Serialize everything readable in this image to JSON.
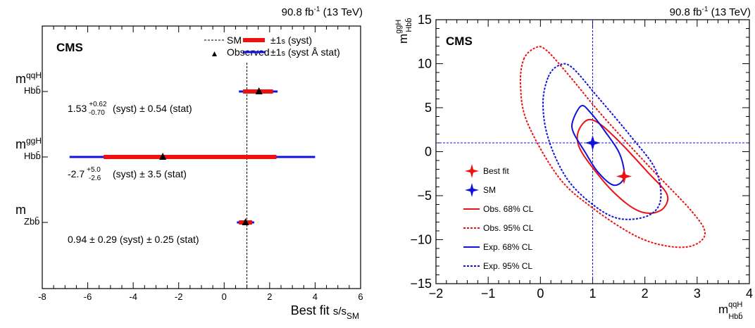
{
  "chart_data": [
    {
      "type": "scatter",
      "lumi_label": "90.8 fb",
      "lumi_sup": "-1",
      "energy_label": " (13 TeV)",
      "experiment": "CMS",
      "xlabel": "Best fit",
      "xlabel_symbol": "s/s",
      "xlabel_sub": "SM",
      "xlim": [
        -8,
        6
      ],
      "x_ticks": [
        "-8",
        "-6",
        "-4",
        "-2",
        "0",
        "2",
        "4",
        "6"
      ],
      "sm_line_x": 1,
      "legend": {
        "sm": "SM",
        "observed": "Observed",
        "syst_pm": "±1",
        "syst_sym": "s",
        "syst_text": " (syst)",
        "total_pm": "±1",
        "total_sym": "s",
        "total_text": " (syst Å stat)"
      },
      "rows": [
        {
          "label_main": "m",
          "label_sup": "qqH",
          "label_sub": "Hbb̄",
          "value": 1.53,
          "syst_lo": 0.7,
          "syst_hi": 0.62,
          "total_lo": 0.88,
          "total_hi": 0.82,
          "text_value": "1.53",
          "text_up": "+0.62",
          "text_down": "-0.70",
          "text_rest": "(syst) ± 0.54 (stat)"
        },
        {
          "label_main": "m",
          "label_sup": "ggH",
          "label_sub": "Hbb̄",
          "value": -2.7,
          "syst_lo": 2.6,
          "syst_hi": 5.0,
          "total_lo": 4.1,
          "total_hi": 6.7,
          "text_value": "-2.7",
          "text_up": "+5.0",
          "text_down": "-2.6",
          "text_rest": "(syst) ± 3.5 (stat)"
        },
        {
          "label_main": "m",
          "label_sup": "",
          "label_sub": "Zbb̄",
          "value": 0.94,
          "syst_lo": 0.29,
          "syst_hi": 0.29,
          "total_lo": 0.38,
          "total_hi": 0.38,
          "text_value": "0.94 ± 0.29 (syst) ± 0.25 (stat)",
          "text_up": "",
          "text_down": "",
          "text_rest": ""
        }
      ],
      "colors": {
        "syst": "#ee1111",
        "total": "#1111dd"
      }
    },
    {
      "type": "line",
      "lumi_label": "90.8 fb",
      "lumi_sup": "-1",
      "energy_label": " (13 TeV)",
      "experiment": "CMS",
      "xlabel_main": "m",
      "xlabel_sup": "qqH",
      "xlabel_sub": "Hbb̄",
      "ylabel_main": "m",
      "ylabel_sup": "ggH",
      "ylabel_sub": "Hbb̄",
      "xlim": [
        -2,
        4
      ],
      "ylim": [
        -15,
        15
      ],
      "x_ticks": [
        "−2",
        "−1",
        "0",
        "1",
        "2",
        "3",
        "4"
      ],
      "y_ticks": [
        "−15",
        "−10",
        "−5",
        "0",
        "5",
        "10",
        "15"
      ],
      "best_fit": {
        "x": 1.6,
        "y": -2.8
      },
      "sm": {
        "x": 1,
        "y": 1
      },
      "contours": [
        {
          "name": "Obs. 68% CL",
          "color": "#ee1111",
          "dashed": false,
          "points": [
            [
              0.72,
              2.2
            ],
            [
              0.9,
              3.6
            ],
            [
              1.15,
              3.1
            ],
            [
              1.55,
              0.9
            ],
            [
              2.05,
              -2.3
            ],
            [
              2.42,
              -4.8
            ],
            [
              2.36,
              -6.4
            ],
            [
              2.1,
              -7.0
            ],
            [
              1.8,
              -6.5
            ],
            [
              1.4,
              -4.6
            ],
            [
              1.05,
              -2.2
            ],
            [
              0.75,
              0.4
            ],
            [
              0.72,
              2.2
            ]
          ]
        },
        {
          "name": "Obs. 95% CL",
          "color": "#ee1111",
          "dashed": true,
          "points": [
            [
              -0.32,
              10.5
            ],
            [
              -0.1,
              11.8
            ],
            [
              0.1,
              11.6
            ],
            [
              0.5,
              9.0
            ],
            [
              1.2,
              4.0
            ],
            [
              2.1,
              -1.8
            ],
            [
              2.9,
              -6.8
            ],
            [
              3.15,
              -9.3
            ],
            [
              2.9,
              -10.7
            ],
            [
              2.4,
              -10.7
            ],
            [
              1.8,
              -9.5
            ],
            [
              1.0,
              -6.4
            ],
            [
              0.35,
              -2.9
            ],
            [
              -0.25,
              3.3
            ],
            [
              -0.38,
              7.5
            ],
            [
              -0.32,
              10.5
            ]
          ]
        },
        {
          "name": "Exp. 68% CL",
          "color": "#1111dd",
          "dashed": false,
          "points": [
            [
              0.62,
              3.5
            ],
            [
              0.78,
              5.2
            ],
            [
              0.95,
              4.5
            ],
            [
              1.25,
              2.2
            ],
            [
              1.52,
              -0.3
            ],
            [
              1.6,
              -2.9
            ],
            [
              1.4,
              -3.8
            ],
            [
              1.1,
              -2.3
            ],
            [
              0.85,
              0.0
            ],
            [
              0.63,
              2.2
            ],
            [
              0.62,
              3.5
            ]
          ]
        },
        {
          "name": "Exp. 95% CL",
          "color": "#1111dd",
          "dashed": true,
          "points": [
            [
              0.15,
              8.5
            ],
            [
              0.35,
              9.8
            ],
            [
              0.6,
              9.6
            ],
            [
              1.1,
              6.2
            ],
            [
              1.75,
              1.6
            ],
            [
              2.2,
              -2.0
            ],
            [
              2.3,
              -5.5
            ],
            [
              2.05,
              -7.3
            ],
            [
              1.5,
              -7.6
            ],
            [
              1.0,
              -6.0
            ],
            [
              0.5,
              -3.0
            ],
            [
              0.15,
              1.5
            ],
            [
              0.05,
              5.5
            ],
            [
              0.15,
              8.5
            ]
          ]
        }
      ],
      "legend": {
        "best_fit": "Best fit",
        "sm": "SM",
        "obs68": "Obs. 68% CL",
        "obs95": "Obs. 95% CL",
        "exp68": "Exp. 68% CL",
        "exp95": "Exp. 95% CL"
      }
    }
  ]
}
